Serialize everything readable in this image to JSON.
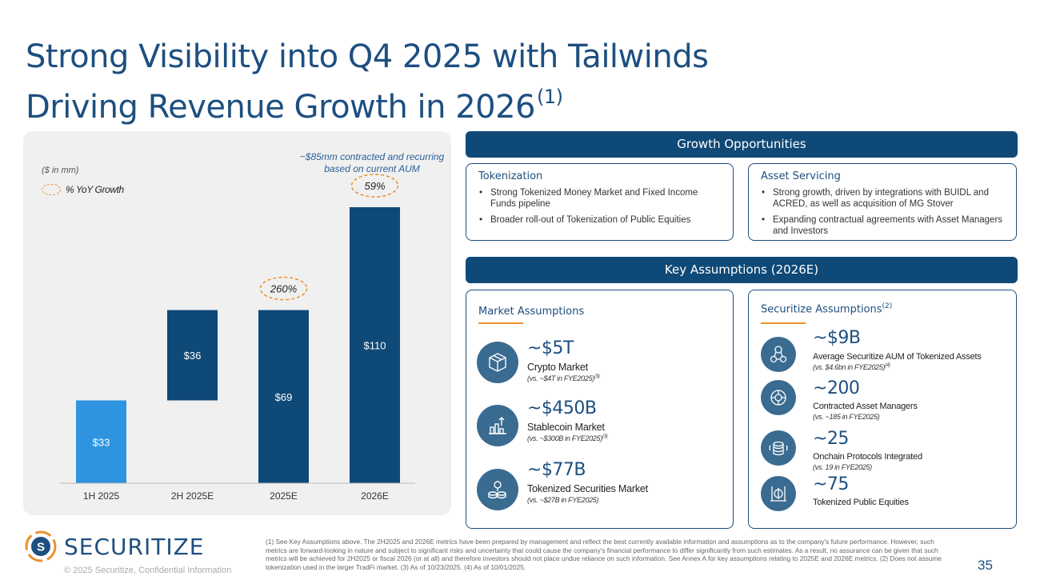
{
  "title": {
    "line1": "Strong Visibility into Q4 2025 with Tailwinds",
    "line2": "Driving Revenue Growth in 2026",
    "superscript": "(1)"
  },
  "chart_panel": {
    "units": "($ in mm)",
    "legend": "% YoY Growth",
    "contract_note": "~$85mm contracted and recurring based on current AUM"
  },
  "chart_data": {
    "type": "bar",
    "subtype": "waterfall",
    "title": "",
    "ylabel": "($ in mm)",
    "categories": [
      "1H 2025",
      "2H 2025E",
      "2025E",
      "2026E"
    ],
    "values": [
      33,
      36,
      69,
      110
    ],
    "labels": [
      "$33",
      "$36",
      "$69",
      "$110"
    ],
    "bases": [
      0,
      33,
      0,
      0
    ],
    "growth": {
      "2025E": "260%",
      "2026E": "59%"
    },
    "ylim": [
      0,
      115
    ],
    "colors": {
      "first": "#2e94e0",
      "other": "#0f4977",
      "growth_oval": "#e8912d"
    }
  },
  "growth_opportunities": {
    "header": "Growth Opportunities",
    "tokenization": {
      "title": "Tokenization",
      "bullets": [
        "Strong Tokenized Money Market and Fixed Income Funds pipeline",
        "Broader roll-out of Tokenization of Public Equities"
      ]
    },
    "asset_servicing": {
      "title": "Asset Servicing",
      "bullets": [
        "Strong growth, driven by integrations with BUIDL and ACRED, as well as acquisition of MG Stover",
        "Expanding contractual agreements with Asset Managers and Investors"
      ]
    }
  },
  "key_assumptions": {
    "header": "Key Assumptions (2026E)",
    "market": {
      "title": "Market Assumptions",
      "items": [
        {
          "icon": "cube-icon",
          "value": "~$5T",
          "label": "Crypto Market",
          "sub": "(vs. ~$4T in FYE2025)",
          "sup": "(3)"
        },
        {
          "icon": "bar-chart-icon",
          "value": "~$450B",
          "label": "Stablecoin Market",
          "sub": "(vs. ~$300B in FYE2025)",
          "sup": "(3)"
        },
        {
          "icon": "coins-icon",
          "value": "~$77B",
          "label": "Tokenized Securities Market",
          "sub": "(vs. ~$27B in FYE2025)",
          "sup": ""
        }
      ]
    },
    "securitize": {
      "title": "Securitize Assumptions",
      "title_sup": "(2)",
      "items": [
        {
          "icon": "asset-network-icon",
          "value": "~$9B",
          "label": "Average Securitize AUM of Tokenized Assets",
          "sub": "(vs. $4.6bn in FYE2025)",
          "sup": "(4)"
        },
        {
          "icon": "manager-globe-icon",
          "value": "~200",
          "label": "Contracted Asset Managers",
          "sub": "(vs. ~185 in FYE2025)",
          "sup": ""
        },
        {
          "icon": "protocol-coin-icon",
          "value": "~25",
          "label": "Onchain Protocols Integrated",
          "sub": "(vs. 19 in FYE2025)",
          "sup": ""
        },
        {
          "icon": "equity-token-icon",
          "value": "~75",
          "label": "Tokenized Public Equities",
          "sub": "",
          "sup": ""
        }
      ]
    }
  },
  "footer": {
    "logo": "SECURITIZE",
    "copyright": "© 2025 Securitize, Confidential Information",
    "footnote": "(1) See Key Assumptions above. The 2H2025 and 2026E metrics have been prepared by management and reflect the best currently available information and assumptions as to the company's future performance. However, such metrics are forward-looking in nature and subject to significant risks and uncertainty that could cause the company's financial performance to differ significantly from such estimates. As a result, no assurance can be given that such metrics will be achieved for 2H2025 or fiscal 2026 (or at all) and therefore investors should not place undue reliance on such information. See Annex A for key assumptions relating to 2025E and 2026E metrics. (2) Does not assume tokenization used in the larger TradFi market. (3) As of 10/23/2025. (4) As of 10/01/2025.",
    "page_number": "35"
  },
  "colors": {
    "primary": "#1d4f80",
    "header_bg": "#0f4977",
    "accent": "#e8912d",
    "bar_light": "#2e94e0"
  }
}
